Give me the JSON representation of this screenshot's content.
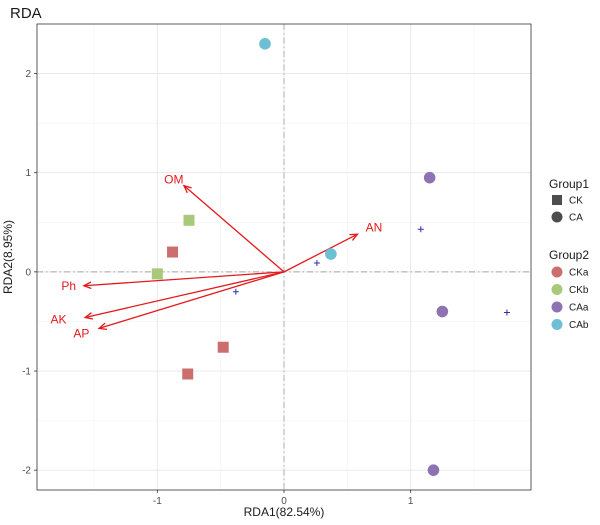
{
  "chart_data": {
    "type": "scatter",
    "title": "RDA",
    "xlabel": "RDA1(82.54%)",
    "ylabel": "RDA2(8.95%)",
    "xlim": [
      -1.95,
      1.95
    ],
    "ylim": [
      -2.2,
      2.5
    ],
    "xticks": [
      -1,
      0,
      1
    ],
    "yticks": [
      -2,
      -1,
      0,
      1,
      2
    ],
    "grid": true,
    "reference_lines": {
      "x": 0,
      "y": 0
    },
    "points": [
      {
        "x": -0.15,
        "y": 2.3,
        "group1": "CA",
        "group2": "CAb"
      },
      {
        "x": 0.37,
        "y": 0.18,
        "group1": "CA",
        "group2": "CAb"
      },
      {
        "x": 1.15,
        "y": 0.95,
        "group1": "CA",
        "group2": "CAa"
      },
      {
        "x": 1.25,
        "y": -0.4,
        "group1": "CA",
        "group2": "CAa"
      },
      {
        "x": 1.18,
        "y": -2.0,
        "group1": "CA",
        "group2": "CAa"
      },
      {
        "x": -0.75,
        "y": 0.52,
        "group1": "CK",
        "group2": "CKb"
      },
      {
        "x": -1.0,
        "y": -0.02,
        "group1": "CK",
        "group2": "CKb"
      },
      {
        "x": -0.88,
        "y": 0.2,
        "group1": "CK",
        "group2": "CKa"
      },
      {
        "x": -0.48,
        "y": -0.76,
        "group1": "CK",
        "group2": "CKa"
      },
      {
        "x": -0.76,
        "y": -1.03,
        "group1": "CK",
        "group2": "CKa"
      }
    ],
    "species_points": [
      {
        "x": 1.08,
        "y": 0.43
      },
      {
        "x": 0.26,
        "y": 0.09
      },
      {
        "x": -0.38,
        "y": -0.2
      },
      {
        "x": 1.76,
        "y": -0.41
      }
    ],
    "arrows": [
      {
        "label": "OM",
        "x": -0.79,
        "y": 0.87
      },
      {
        "label": "AN",
        "x": 0.58,
        "y": 0.38
      },
      {
        "label": "Ph",
        "x": -1.58,
        "y": -0.14
      },
      {
        "label": "AK",
        "x": -1.57,
        "y": -0.46
      },
      {
        "label": "AP",
        "x": -1.46,
        "y": -0.57
      }
    ],
    "arrow_label_positions": [
      {
        "label": "OM",
        "x": -0.87,
        "y": 0.93
      },
      {
        "label": "AN",
        "x": 0.71,
        "y": 0.45
      },
      {
        "label": "Ph",
        "x": -1.7,
        "y": -0.14
      },
      {
        "label": "AK",
        "x": -1.78,
        "y": -0.48
      },
      {
        "label": "AP",
        "x": -1.6,
        "y": -0.62
      }
    ],
    "legend": {
      "position": "right",
      "group1": {
        "title": "Group1",
        "entries": [
          {
            "label": "CK",
            "shape": "square"
          },
          {
            "label": "CA",
            "shape": "circle"
          }
        ]
      },
      "group2": {
        "title": "Group2",
        "entries": [
          {
            "label": "CKa"
          },
          {
            "label": "CKb"
          },
          {
            "label": "CAa"
          },
          {
            "label": "CAb"
          }
        ]
      }
    },
    "colors": {
      "CKa": "#cc6e6e",
      "CKb": "#a9c97a",
      "CAa": "#8e73b3",
      "CAb": "#6dbfd6",
      "arrow": "#e41a1c",
      "species": "#2e2ea8",
      "legend_shape": "#4d4d4d"
    }
  }
}
